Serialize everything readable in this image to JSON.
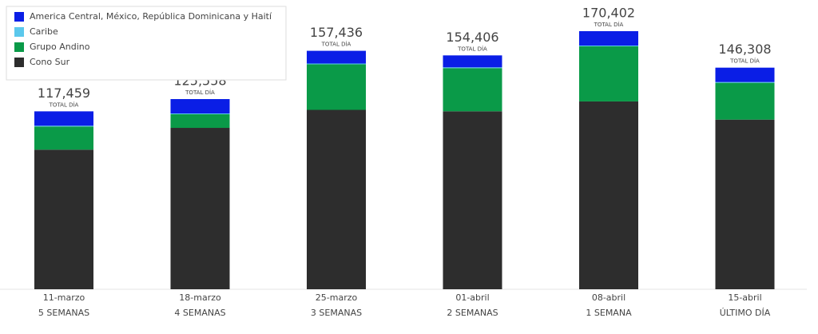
{
  "chart_data": {
    "type": "stacked_bar",
    "categories": [
      "11-marzo",
      "18-marzo",
      "25-marzo",
      "01-abril",
      "08-abril",
      "15-abril"
    ],
    "sublabels": [
      "5 SEMANAS",
      "4 SEMANAS",
      "3 SEMANAS",
      "2 SEMANAS",
      "1 SEMANA",
      "ÚLTIMO DÍA"
    ],
    "totals": [
      117459,
      125558,
      157436,
      154406,
      170402,
      146308
    ],
    "total_labels": [
      "117,459",
      "125,558",
      "157,436",
      "154,406",
      "170,402",
      "146,308"
    ],
    "total_caption": "TOTAL DÍA",
    "series": [
      {
        "name": "Cono Sur",
        "color": "#2d2d2d",
        "values": [
          92159,
          106558,
          118436,
          117506,
          124002,
          112008
        ]
      },
      {
        "name": "Grupo Andino",
        "color": "#0a9a48",
        "values": [
          15300,
          9000,
          30100,
          28500,
          36400,
          24300
        ]
      },
      {
        "name": "Caribe",
        "color": "#5bc8ec",
        "values": [
          500,
          500,
          500,
          500,
          500,
          500
        ]
      },
      {
        "name": "America Central, México, República Dominicana y Haití",
        "color": "#0a1ee6",
        "values": [
          9500,
          9500,
          8400,
          7900,
          9500,
          9500
        ]
      }
    ],
    "legend": "top-left"
  }
}
